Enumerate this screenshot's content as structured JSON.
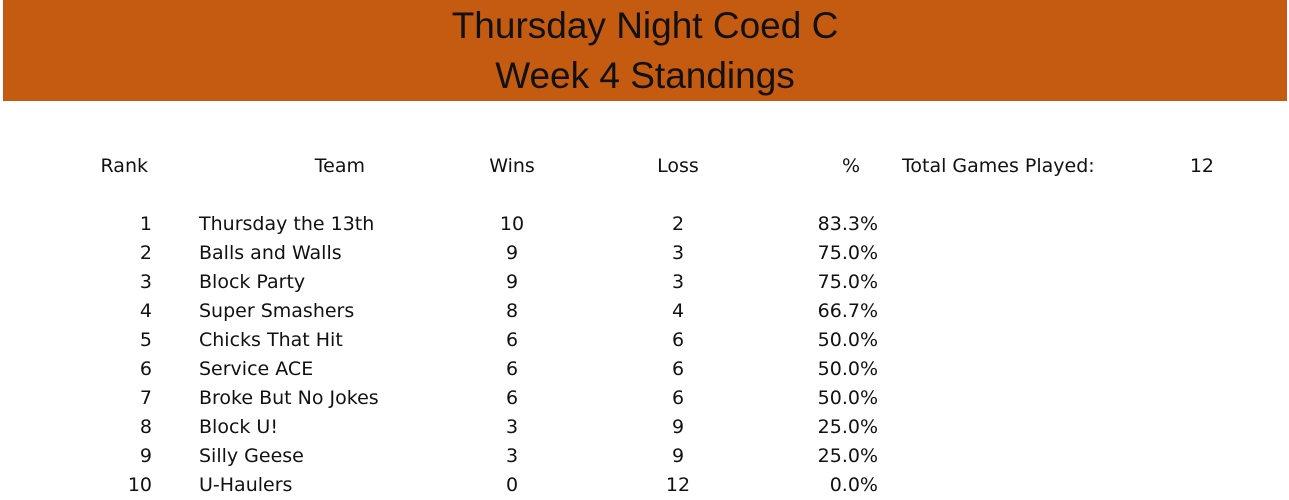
{
  "banner": {
    "title_line1": "Thursday Night Coed C",
    "title_line2": "Week 4 Standings",
    "color": "#c55a11"
  },
  "headers": {
    "rank": "Rank",
    "team": "Team",
    "wins": "Wins",
    "loss": "Loss",
    "pct": "%"
  },
  "summary": {
    "label": "Total Games Played:",
    "value": "12"
  },
  "rows": [
    {
      "rank": "1",
      "team": "Thursday the 13th",
      "wins": "10",
      "loss": "2",
      "pct": "83.3%"
    },
    {
      "rank": "2",
      "team": "Balls and Walls",
      "wins": "9",
      "loss": "3",
      "pct": "75.0%"
    },
    {
      "rank": "3",
      "team": "Block Party",
      "wins": "9",
      "loss": "3",
      "pct": "75.0%"
    },
    {
      "rank": "4",
      "team": "Super Smashers",
      "wins": "8",
      "loss": "4",
      "pct": "66.7%"
    },
    {
      "rank": "5",
      "team": "Chicks That Hit",
      "wins": "6",
      "loss": "6",
      "pct": "50.0%"
    },
    {
      "rank": "6",
      "team": "Service ACE",
      "wins": "6",
      "loss": "6",
      "pct": "50.0%"
    },
    {
      "rank": "7",
      "team": "Broke But No Jokes",
      "wins": "6",
      "loss": "6",
      "pct": "50.0%"
    },
    {
      "rank": "8",
      "team": "Block U!",
      "wins": "3",
      "loss": "9",
      "pct": "25.0%"
    },
    {
      "rank": "9",
      "team": "Silly Geese",
      "wins": "3",
      "loss": "9",
      "pct": "25.0%"
    },
    {
      "rank": "10",
      "team": "U-Haulers",
      "wins": "0",
      "loss": "12",
      "pct": "0.0%"
    }
  ]
}
